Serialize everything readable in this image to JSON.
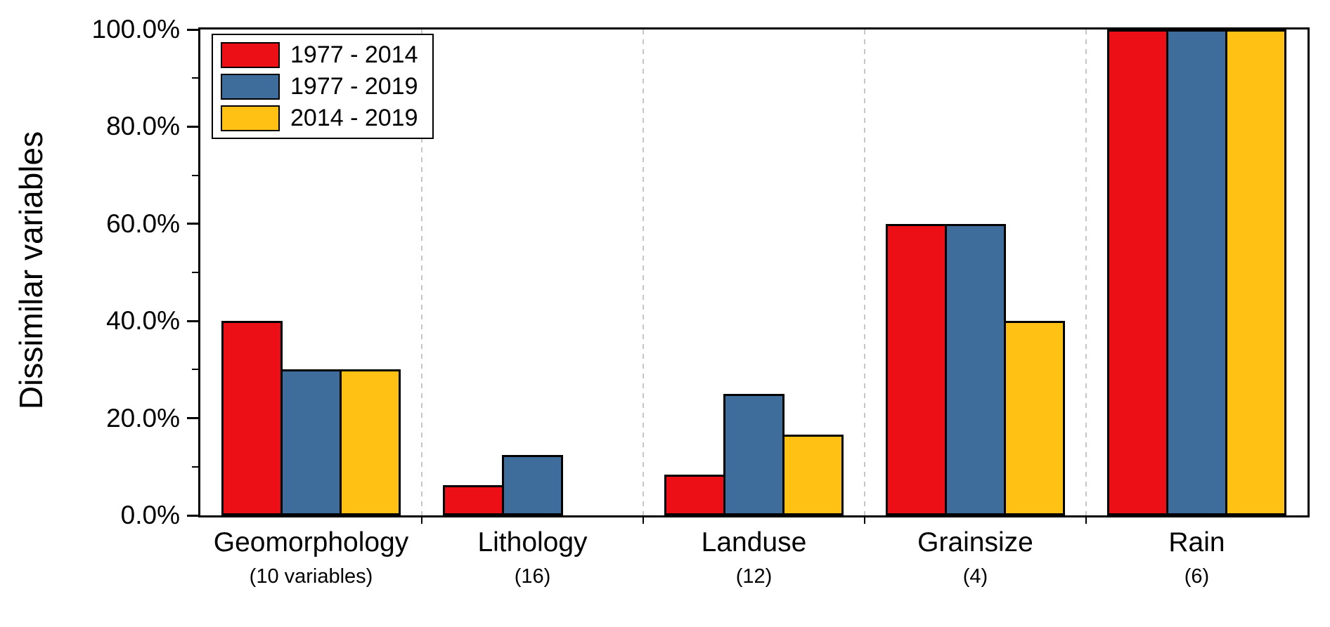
{
  "chart_data": {
    "type": "bar",
    "title": "",
    "xlabel": "",
    "ylabel": "Dissimilar variables",
    "ylim": [
      0,
      100
    ],
    "y_major_step": 20,
    "y_minor_step": 10,
    "y_tick_labels": [
      "0.0%",
      "20.0%",
      "40.0%",
      "60.0%",
      "80.0%",
      "100.0%"
    ],
    "categories": [
      "Geomorphology",
      "Lithology",
      "Landuse",
      "Grainsize",
      "Rain"
    ],
    "category_counts": [
      "(10 variables)",
      "(16)",
      "(12)",
      "(4)",
      "(6)"
    ],
    "series": [
      {
        "name": "1977 - 2014",
        "color": "#ec1016",
        "values": [
          40,
          6.25,
          8.33,
          60,
          100
        ]
      },
      {
        "name": "1977 - 2019",
        "color": "#3e6d9c",
        "values": [
          30,
          12.5,
          25,
          60,
          100
        ]
      },
      {
        "name": "2014 - 2019",
        "color": "#ffc114",
        "values": [
          30,
          0,
          16.67,
          40,
          100
        ]
      }
    ],
    "legend_position": "top-left",
    "grid": "vertical-dashed-separators",
    "separator_color": "#c6c6c6",
    "bar_border_color": "#000000",
    "axis_color": "#000000"
  }
}
